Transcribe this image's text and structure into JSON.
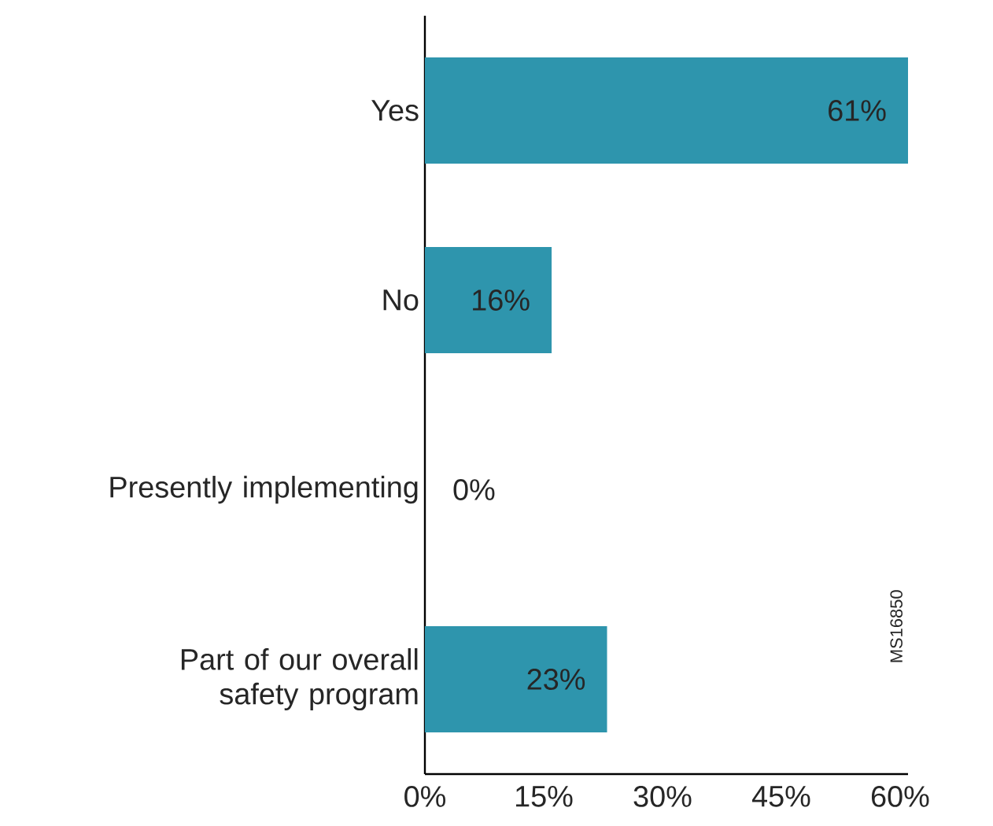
{
  "chart_data": {
    "type": "bar",
    "orientation": "horizontal",
    "categories": [
      "Yes",
      "No",
      "Presently implementing",
      "Part of our overall safety program"
    ],
    "values": [
      61,
      16,
      0,
      23
    ],
    "value_labels": [
      "61%",
      "16%",
      "0%",
      "23%"
    ],
    "color": "#2e95ad",
    "xlim": [
      0,
      61
    ],
    "xticks": [
      {
        "value": 0,
        "label": "0%"
      },
      {
        "value": 15,
        "label": "15%"
      },
      {
        "value": 30,
        "label": "30%"
      },
      {
        "value": 45,
        "label": "45%"
      },
      {
        "value": 60,
        "label": "60%"
      }
    ],
    "annotations": [
      "MS16850"
    ]
  }
}
